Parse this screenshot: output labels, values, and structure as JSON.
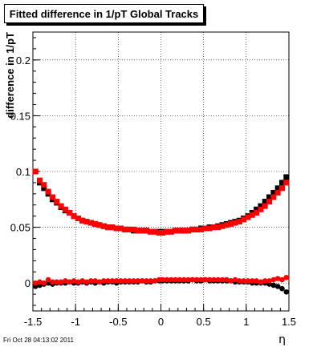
{
  "chart_data": {
    "type": "scatter",
    "title": "Fitted difference in 1/pT  Global Tracks",
    "ylabel": "difference in 1/pT",
    "xlabel": "η",
    "xlim": [
      -1.5,
      1.5
    ],
    "ylim": [
      -0.025,
      0.225
    ],
    "x_ticks": [
      -1.5,
      -1,
      -0.5,
      0,
      0.5,
      1,
      1.5
    ],
    "x_tick_labels": [
      "-1.5",
      "-1",
      "-0.5",
      "0",
      "0.5",
      "1",
      "1.5"
    ],
    "y_ticks": [
      0,
      0.05,
      0.1,
      0.15,
      0.2
    ],
    "y_tick_labels": [
      "0",
      "0.05",
      "0.1",
      "0.15",
      "0.2"
    ],
    "grid": true,
    "series": [
      {
        "color": "#000000",
        "marker": "square",
        "x": [
          -1.47,
          -1.42,
          -1.37,
          -1.32,
          -1.27,
          -1.22,
          -1.17,
          -1.12,
          -1.07,
          -1.02,
          -0.97,
          -0.92,
          -0.87,
          -0.82,
          -0.77,
          -0.72,
          -0.67,
          -0.62,
          -0.57,
          -0.52,
          -0.47,
          -0.42,
          -0.37,
          -0.32,
          -0.27,
          -0.22,
          -0.17,
          -0.12,
          -0.07,
          -0.02,
          0.02,
          0.07,
          0.12,
          0.17,
          0.22,
          0.27,
          0.32,
          0.37,
          0.42,
          0.47,
          0.52,
          0.57,
          0.62,
          0.67,
          0.72,
          0.77,
          0.82,
          0.87,
          0.92,
          0.97,
          1.02,
          1.07,
          1.12,
          1.17,
          1.22,
          1.27,
          1.32,
          1.37,
          1.42,
          1.47
        ],
        "y": [
          0.1,
          0.09,
          0.085,
          0.08,
          0.075,
          0.072,
          0.068,
          0.065,
          0.063,
          0.06,
          0.058,
          0.056,
          0.055,
          0.054,
          0.053,
          0.052,
          0.051,
          0.05,
          0.05,
          0.049,
          0.049,
          0.048,
          0.048,
          0.047,
          0.047,
          0.047,
          0.047,
          0.046,
          0.046,
          0.046,
          0.046,
          0.046,
          0.046,
          0.047,
          0.047,
          0.047,
          0.047,
          0.048,
          0.048,
          0.049,
          0.049,
          0.05,
          0.05,
          0.051,
          0.052,
          0.053,
          0.054,
          0.055,
          0.056,
          0.058,
          0.06,
          0.063,
          0.066,
          0.069,
          0.073,
          0.077,
          0.081,
          0.085,
          0.09,
          0.095
        ]
      },
      {
        "color": "#ff0000",
        "marker": "square",
        "x": [
          -1.47,
          -1.42,
          -1.37,
          -1.32,
          -1.27,
          -1.22,
          -1.17,
          -1.12,
          -1.07,
          -1.02,
          -0.97,
          -0.92,
          -0.87,
          -0.82,
          -0.77,
          -0.72,
          -0.67,
          -0.62,
          -0.57,
          -0.52,
          -0.47,
          -0.42,
          -0.37,
          -0.32,
          -0.27,
          -0.22,
          -0.17,
          -0.12,
          -0.07,
          -0.02,
          0.02,
          0.07,
          0.12,
          0.17,
          0.22,
          0.27,
          0.32,
          0.37,
          0.42,
          0.47,
          0.52,
          0.57,
          0.62,
          0.67,
          0.72,
          0.77,
          0.82,
          0.87,
          0.92,
          0.97,
          1.02,
          1.07,
          1.12,
          1.17,
          1.22,
          1.27,
          1.32,
          1.37,
          1.42,
          1.47
        ],
        "y": [
          0.1,
          0.092,
          0.088,
          0.082,
          0.077,
          0.073,
          0.069,
          0.066,
          0.063,
          0.06,
          0.058,
          0.056,
          0.055,
          0.054,
          0.053,
          0.052,
          0.051,
          0.05,
          0.05,
          0.049,
          0.049,
          0.048,
          0.048,
          0.048,
          0.047,
          0.047,
          0.047,
          0.046,
          0.046,
          0.045,
          0.045,
          0.046,
          0.046,
          0.047,
          0.047,
          0.047,
          0.047,
          0.048,
          0.048,
          0.048,
          0.049,
          0.049,
          0.05,
          0.05,
          0.051,
          0.052,
          0.053,
          0.054,
          0.055,
          0.057,
          0.059,
          0.061,
          0.063,
          0.066,
          0.069,
          0.073,
          0.077,
          0.081,
          0.085,
          0.09
        ]
      },
      {
        "color": "#000000",
        "marker": "circle",
        "x": [
          -1.47,
          -1.42,
          -1.37,
          -1.32,
          -1.27,
          -1.22,
          -1.17,
          -1.12,
          -1.07,
          -1.02,
          -0.97,
          -0.92,
          -0.87,
          -0.82,
          -0.77,
          -0.72,
          -0.67,
          -0.62,
          -0.57,
          -0.52,
          -0.47,
          -0.42,
          -0.37,
          -0.32,
          -0.27,
          -0.22,
          -0.17,
          -0.12,
          -0.07,
          -0.02,
          0.02,
          0.07,
          0.12,
          0.17,
          0.22,
          0.27,
          0.32,
          0.37,
          0.42,
          0.47,
          0.52,
          0.57,
          0.62,
          0.67,
          0.72,
          0.77,
          0.82,
          0.87,
          0.92,
          0.97,
          1.02,
          1.07,
          1.12,
          1.17,
          1.22,
          1.27,
          1.32,
          1.37,
          1.42,
          1.47
        ],
        "y": [
          -0.003,
          -0.002,
          -0.001,
          0.0,
          -0.001,
          0.0,
          0.0,
          0.0,
          0.001,
          0.0,
          0.0,
          0.001,
          0.0,
          0.001,
          0.0,
          0.001,
          0.0,
          0.001,
          0.001,
          0.0,
          0.001,
          0.001,
          0.001,
          0.001,
          0.001,
          0.002,
          0.001,
          0.001,
          0.002,
          0.002,
          0.002,
          0.002,
          0.002,
          0.002,
          0.002,
          0.002,
          0.002,
          0.003,
          0.002,
          0.002,
          0.003,
          0.002,
          0.002,
          0.002,
          0.002,
          0.002,
          0.002,
          0.001,
          0.001,
          0.001,
          0.001,
          0.0,
          0.0,
          0.0,
          0.0,
          -0.001,
          -0.002,
          -0.003,
          -0.005,
          -0.008
        ]
      },
      {
        "color": "#ff0000",
        "marker": "circle",
        "x": [
          -1.47,
          -1.42,
          -1.37,
          -1.32,
          -1.27,
          -1.22,
          -1.17,
          -1.12,
          -1.07,
          -1.02,
          -0.97,
          -0.92,
          -0.87,
          -0.82,
          -0.77,
          -0.72,
          -0.67,
          -0.62,
          -0.57,
          -0.52,
          -0.47,
          -0.42,
          -0.37,
          -0.32,
          -0.27,
          -0.22,
          -0.17,
          -0.12,
          -0.07,
          -0.02,
          0.02,
          0.07,
          0.12,
          0.17,
          0.22,
          0.27,
          0.32,
          0.37,
          0.42,
          0.47,
          0.52,
          0.57,
          0.62,
          0.67,
          0.72,
          0.77,
          0.82,
          0.87,
          0.92,
          0.97,
          1.02,
          1.07,
          1.12,
          1.17,
          1.22,
          1.27,
          1.32,
          1.37,
          1.42,
          1.47
        ],
        "y": [
          0.0,
          0.001,
          0.0,
          0.003,
          0.001,
          0.001,
          0.001,
          0.002,
          0.001,
          0.002,
          0.001,
          0.002,
          0.001,
          0.002,
          0.002,
          0.001,
          0.002,
          0.002,
          0.002,
          0.002,
          0.002,
          0.002,
          0.002,
          0.002,
          0.002,
          0.002,
          0.002,
          0.002,
          0.002,
          0.003,
          0.003,
          0.003,
          0.003,
          0.003,
          0.003,
          0.003,
          0.003,
          0.003,
          0.003,
          0.003,
          0.003,
          0.003,
          0.003,
          0.003,
          0.003,
          0.003,
          0.002,
          0.003,
          0.002,
          0.002,
          0.002,
          0.002,
          0.002,
          0.001,
          0.002,
          0.002,
          0.003,
          0.004,
          0.003,
          0.005
        ]
      }
    ]
  },
  "footer_timestamp": "Fri Oct 28 04:13:02 2011"
}
